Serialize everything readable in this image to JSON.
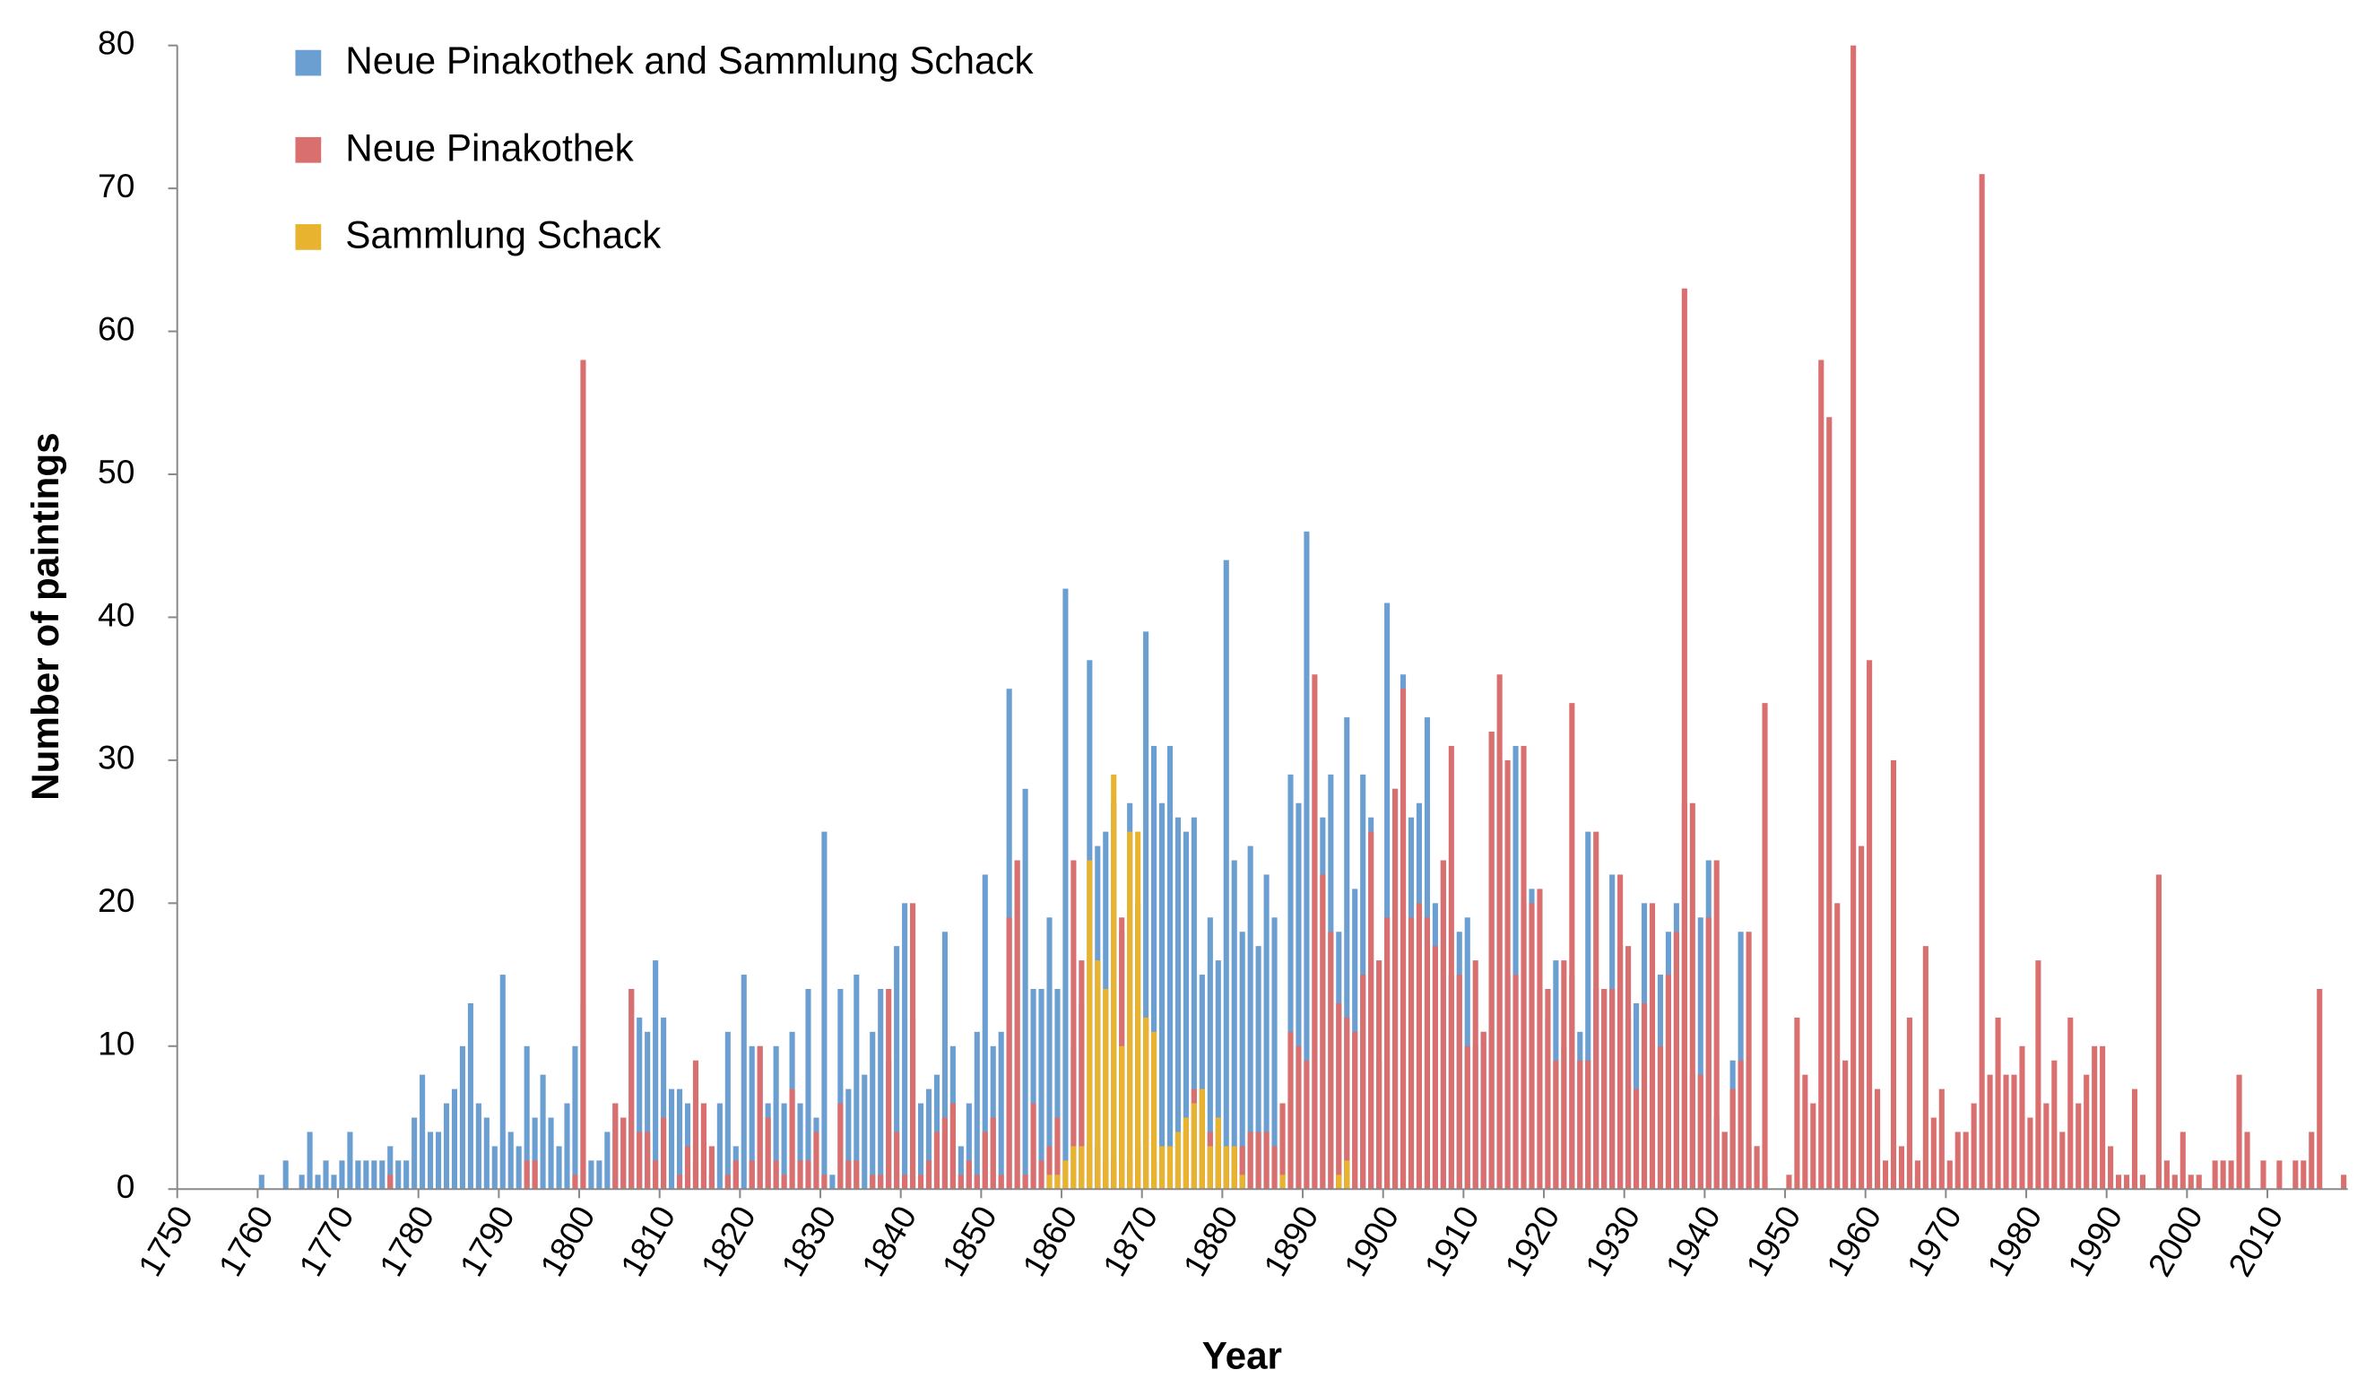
{
  "chart_data": {
    "type": "bar",
    "x_label": "Year",
    "y_label": "Number of paintings",
    "xlim": [
      1750,
      2020
    ],
    "xticks": [
      1750,
      1760,
      1770,
      1780,
      1790,
      1800,
      1810,
      1820,
      1830,
      1840,
      1850,
      1860,
      1870,
      1880,
      1890,
      1900,
      1910,
      1920,
      1930,
      1940,
      1950,
      1960,
      1970,
      1980,
      1990,
      2000,
      2010
    ],
    "ylim": [
      0,
      80
    ],
    "yticks": [
      0,
      10,
      20,
      30,
      40,
      50,
      60,
      70,
      80
    ],
    "legend": "top-left",
    "grid": false,
    "x": [
      1760,
      1761,
      1762,
      1763,
      1764,
      1765,
      1766,
      1767,
      1768,
      1769,
      1770,
      1771,
      1772,
      1773,
      1774,
      1775,
      1776,
      1777,
      1778,
      1779,
      1780,
      1781,
      1782,
      1783,
      1784,
      1785,
      1786,
      1787,
      1788,
      1789,
      1790,
      1791,
      1792,
      1793,
      1794,
      1795,
      1796,
      1797,
      1798,
      1799,
      1800,
      1801,
      1802,
      1803,
      1804,
      1805,
      1806,
      1807,
      1808,
      1809,
      1810,
      1811,
      1812,
      1813,
      1814,
      1815,
      1816,
      1817,
      1818,
      1819,
      1820,
      1821,
      1822,
      1823,
      1824,
      1825,
      1826,
      1827,
      1828,
      1829,
      1830,
      1831,
      1832,
      1833,
      1834,
      1835,
      1836,
      1837,
      1838,
      1839,
      1840,
      1841,
      1842,
      1843,
      1844,
      1845,
      1846,
      1847,
      1848,
      1849,
      1850,
      1851,
      1852,
      1853,
      1854,
      1855,
      1856,
      1857,
      1858,
      1859,
      1860,
      1861,
      1862,
      1863,
      1864,
      1865,
      1866,
      1867,
      1868,
      1869,
      1870,
      1871,
      1872,
      1873,
      1874,
      1875,
      1876,
      1877,
      1878,
      1879,
      1880,
      1881,
      1882,
      1883,
      1884,
      1885,
      1886,
      1887,
      1888,
      1889,
      1890,
      1891,
      1892,
      1893,
      1894,
      1895,
      1896,
      1897,
      1898,
      1899,
      1900,
      1901,
      1902,
      1903,
      1904,
      1905,
      1906,
      1907,
      1908,
      1909,
      1910,
      1911,
      1912,
      1913,
      1914,
      1915,
      1916,
      1917,
      1918,
      1919,
      1920,
      1921,
      1922,
      1923,
      1924,
      1925,
      1926,
      1927,
      1928,
      1929,
      1930,
      1931,
      1932,
      1933,
      1934,
      1935,
      1936,
      1937,
      1938,
      1939,
      1940,
      1941,
      1942,
      1943,
      1944,
      1945,
      1946,
      1947,
      1948,
      1949,
      1950,
      1951,
      1952,
      1953,
      1954,
      1955,
      1956,
      1957,
      1958,
      1959,
      1960,
      1961,
      1962,
      1963,
      1964,
      1965,
      1966,
      1967,
      1968,
      1969,
      1970,
      1971,
      1972,
      1973,
      1974,
      1975,
      1976,
      1977,
      1978,
      1979,
      1980,
      1981,
      1982,
      1983,
      1984,
      1985,
      1986,
      1987,
      1988,
      1989,
      1990,
      1991,
      1992,
      1993,
      1994,
      1995,
      1996,
      1997,
      1998,
      1999,
      2000,
      2001,
      2002,
      2003,
      2004,
      2005,
      2006,
      2007,
      2008,
      2009,
      2010,
      2011,
      2012,
      2013,
      2014,
      2015,
      2016,
      2017,
      2018,
      2019
    ],
    "series": [
      {
        "name": "Neue Pinakothek and Sammlung Schack",
        "color": "#6b9fd2",
        "values": [
          1,
          null,
          null,
          2,
          null,
          1,
          4,
          1,
          2,
          1,
          2,
          4,
          2,
          2,
          2,
          2,
          3,
          2,
          2,
          5,
          8,
          4,
          4,
          6,
          7,
          10,
          13,
          6,
          5,
          3,
          15,
          4,
          3,
          10,
          5,
          8,
          5,
          3,
          6,
          10,
          13,
          2,
          2,
          4,
          6,
          5,
          14,
          12,
          11,
          16,
          12,
          7,
          7,
          6,
          2,
          6,
          1,
          6,
          11,
          3,
          15,
          10,
          10,
          6,
          10,
          6,
          11,
          6,
          14,
          5,
          25,
          1,
          14,
          7,
          15,
          8,
          11,
          14,
          9,
          17,
          20,
          12,
          6,
          7,
          8,
          18,
          10,
          3,
          6,
          11,
          22,
          10,
          11,
          35,
          23,
          28,
          14,
          14,
          19,
          14,
          42,
          10,
          13,
          37,
          24,
          25,
          27,
          18,
          27,
          20,
          39,
          31,
          27,
          31,
          26,
          25,
          26,
          15,
          19,
          16,
          44,
          23,
          18,
          24,
          17,
          22,
          19,
          6,
          29,
          27,
          46,
          30,
          26,
          29,
          18,
          33,
          21,
          29,
          26,
          9,
          41,
          28,
          36,
          26,
          27,
          33,
          20,
          23,
          15,
          18,
          19,
          10,
          11,
          32,
          30,
          15,
          31,
          20,
          21,
          14,
          12,
          16,
          10,
          15,
          11,
          25,
          14,
          14,
          22,
          17,
          12,
          13,
          20,
          10,
          15,
          18,
          20,
          27,
          8,
          19,
          23,
          5,
          4,
          9,
          18,
          3,
          3,
          1,
          null,
          null,
          null,
          null,
          null,
          null,
          null,
          null,
          null,
          null,
          null,
          null,
          null,
          null,
          null,
          null,
          null,
          null,
          null,
          null,
          null,
          null,
          null,
          null,
          null,
          null,
          null,
          null,
          null,
          null,
          null,
          null,
          null,
          null,
          null,
          null,
          null,
          null,
          null,
          null,
          null,
          null,
          null,
          null,
          null,
          null,
          null,
          null,
          null,
          null,
          null,
          null,
          null,
          null,
          null,
          null,
          null,
          null,
          null,
          null,
          null,
          null,
          null,
          null,
          null,
          null,
          null,
          null,
          null,
          null,
          null,
          null
        ]
      },
      {
        "name": "Neue Pinakothek",
        "color": "#d9706f",
        "values": [
          null,
          null,
          null,
          null,
          null,
          null,
          null,
          null,
          null,
          null,
          null,
          null,
          null,
          null,
          null,
          null,
          1,
          null,
          null,
          null,
          null,
          null,
          null,
          null,
          null,
          null,
          null,
          null,
          null,
          null,
          null,
          null,
          null,
          2,
          2,
          null,
          null,
          null,
          null,
          1,
          58,
          null,
          null,
          null,
          6,
          5,
          14,
          4,
          4,
          2,
          5,
          null,
          1,
          3,
          9,
          6,
          3,
          null,
          1,
          2,
          null,
          2,
          10,
          5,
          2,
          1,
          7,
          2,
          2,
          4,
          1,
          null,
          6,
          2,
          2,
          null,
          1,
          1,
          14,
          4,
          1,
          20,
          1,
          2,
          4,
          5,
          6,
          1,
          2,
          1,
          4,
          5,
          1,
          19,
          23,
          1,
          6,
          2,
          3,
          5,
          2,
          23,
          16,
          3,
          3,
          2,
          2,
          19,
          2,
          3,
          12,
          2,
          3,
          3,
          2,
          4,
          7,
          7,
          4,
          3,
          3,
          3,
          3,
          4,
          4,
          4,
          3,
          6,
          11,
          10,
          9,
          36,
          22,
          18,
          13,
          12,
          11,
          15,
          25,
          16,
          19,
          28,
          35,
          19,
          20,
          19,
          17,
          23,
          31,
          15,
          10,
          16,
          11,
          32,
          36,
          30,
          15,
          31,
          20,
          21,
          14,
          9,
          16,
          34,
          9,
          9,
          25,
          14,
          14,
          22,
          17,
          7,
          13,
          20,
          10,
          15,
          18,
          63,
          27,
          8,
          19,
          23,
          4,
          7,
          9,
          18,
          3,
          34,
          null,
          null,
          1,
          12,
          8,
          6,
          58,
          54,
          20,
          9,
          80,
          24,
          37,
          7,
          2,
          30,
          3,
          12,
          2,
          17,
          5,
          7,
          2,
          4,
          4,
          6,
          71,
          8,
          12,
          8,
          8,
          10,
          5,
          16,
          6,
          9,
          4,
          12,
          6,
          8,
          10,
          10,
          3,
          1,
          1,
          7,
          1,
          null,
          22,
          2,
          1,
          4,
          1,
          1,
          null,
          2,
          2,
          2,
          8,
          4,
          null,
          2,
          null,
          2,
          null,
          2,
          2,
          4,
          14,
          null,
          null,
          1
        ]
      },
      {
        "name": "Sammlung Schack",
        "color": "#e8b32e",
        "values": [
          null,
          null,
          null,
          null,
          null,
          null,
          null,
          null,
          null,
          null,
          null,
          null,
          null,
          null,
          null,
          null,
          null,
          null,
          null,
          null,
          null,
          null,
          null,
          null,
          null,
          null,
          null,
          null,
          null,
          null,
          null,
          null,
          null,
          null,
          null,
          null,
          null,
          null,
          null,
          null,
          null,
          null,
          null,
          null,
          null,
          null,
          null,
          null,
          null,
          null,
          null,
          null,
          null,
          null,
          null,
          null,
          null,
          null,
          null,
          null,
          null,
          null,
          null,
          null,
          null,
          null,
          null,
          null,
          null,
          null,
          null,
          null,
          null,
          null,
          null,
          null,
          null,
          null,
          null,
          null,
          null,
          null,
          null,
          null,
          null,
          null,
          null,
          null,
          null,
          null,
          null,
          null,
          null,
          null,
          null,
          null,
          null,
          null,
          1,
          1,
          2,
          3,
          3,
          23,
          16,
          14,
          29,
          10,
          25,
          25,
          12,
          11,
          3,
          3,
          4,
          5,
          6,
          7,
          3,
          5,
          3,
          3,
          1,
          null,
          null,
          null,
          null,
          1,
          null,
          null,
          null,
          null,
          null,
          null,
          1,
          2,
          null,
          null,
          null,
          null,
          null,
          null,
          null,
          null,
          null,
          null,
          null,
          null,
          null,
          null,
          null,
          null,
          null,
          null,
          null,
          null,
          null,
          null,
          null,
          null,
          null,
          null,
          null,
          null,
          null,
          null,
          null,
          null,
          null,
          null,
          null,
          null,
          null,
          null,
          null,
          null,
          null,
          null,
          null,
          null,
          null,
          null,
          null,
          null,
          null,
          null,
          null,
          null,
          null,
          null,
          null,
          null,
          null,
          null,
          null,
          null,
          null,
          null,
          null,
          null,
          null,
          null,
          null,
          null,
          null,
          null,
          null,
          null,
          null,
          null,
          null,
          null,
          null,
          null,
          null,
          null,
          null,
          null,
          null,
          null,
          null,
          null,
          null,
          null,
          null,
          null,
          null,
          null,
          null,
          null,
          null,
          null,
          null,
          null,
          null,
          null,
          null,
          null,
          null,
          null,
          null,
          null,
          null,
          null,
          null,
          null,
          null,
          null,
          null,
          null,
          null,
          null,
          null,
          null,
          null,
          null,
          null,
          null,
          null,
          null
        ]
      }
    ]
  }
}
